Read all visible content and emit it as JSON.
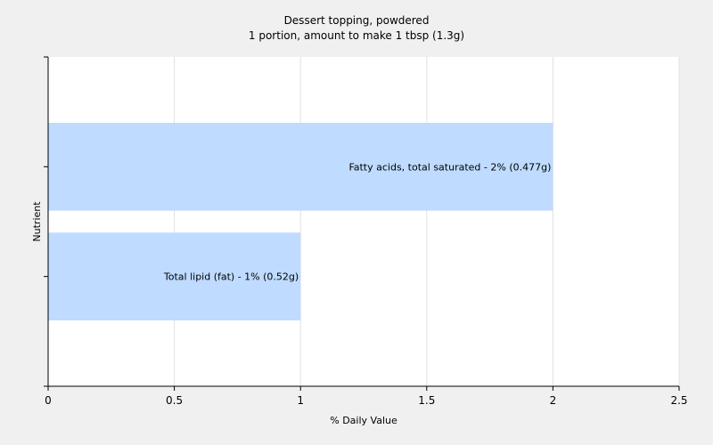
{
  "chart_data": {
    "type": "bar",
    "orientation": "horizontal",
    "title": "Dessert topping, powdered",
    "subtitle": "1 portion, amount to make 1 tbsp (1.3g)",
    "xlabel": "% Daily Value",
    "ylabel": "Nutrient",
    "xlim": [
      0,
      2.5
    ],
    "xticks": [
      "0",
      "0.5",
      "1",
      "1.5",
      "2",
      "2.5"
    ],
    "grid": true,
    "colors": {
      "bar": "#bfdbff",
      "background": "#f0f0f0",
      "plot": "#ffffff",
      "grid": "#e0e0e0"
    },
    "categories": [
      "Fatty acids, total saturated",
      "Total lipid (fat)"
    ],
    "values": [
      2,
      1
    ],
    "labels": [
      "Fatty acids, total saturated - 2% (0.477g)",
      "Total lipid (fat) - 1% (0.52g)"
    ]
  }
}
